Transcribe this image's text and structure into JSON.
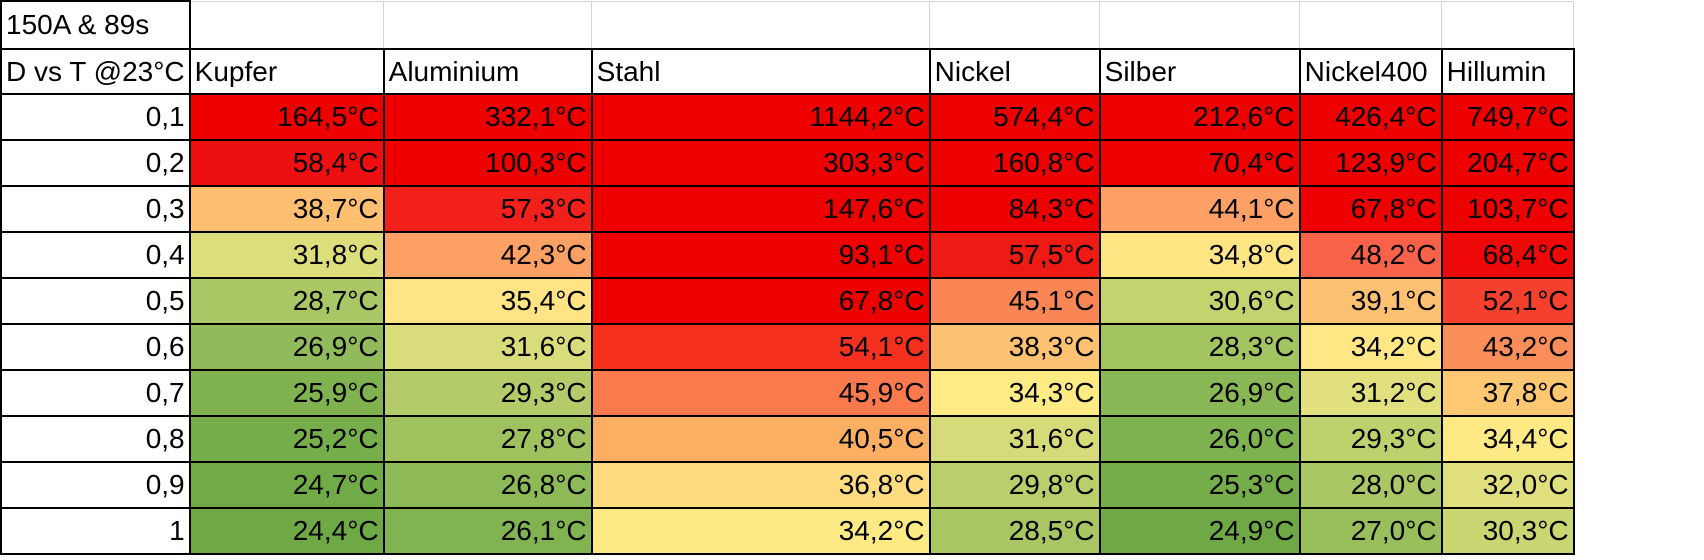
{
  "title": "150A & 89s",
  "corner_label": "D vs T @23°C",
  "columns": [
    "Kupfer",
    "Aluminium",
    "Stahl",
    "Nickel",
    "Silber",
    "Nickel400",
    "Hillumin"
  ],
  "rows": [
    {
      "d": "0,1",
      "cells": [
        {
          "t": "164,5°C",
          "c": "#ee0000"
        },
        {
          "t": "332,1°C",
          "c": "#ee0000"
        },
        {
          "t": "1144,2°C",
          "c": "#ee0000"
        },
        {
          "t": "574,4°C",
          "c": "#ee0000"
        },
        {
          "t": "212,6°C",
          "c": "#ee0000"
        },
        {
          "t": "426,4°C",
          "c": "#ee0000"
        },
        {
          "t": "749,7°C",
          "c": "#ee0000"
        }
      ]
    },
    {
      "d": "0,2",
      "cells": [
        {
          "t": "58,4°C",
          "c": "#ee1010"
        },
        {
          "t": "100,3°C",
          "c": "#ee0000"
        },
        {
          "t": "303,3°C",
          "c": "#ee0000"
        },
        {
          "t": "160,8°C",
          "c": "#ee0000"
        },
        {
          "t": "70,4°C",
          "c": "#ee0000"
        },
        {
          "t": "123,9°C",
          "c": "#ee0000"
        },
        {
          "t": "204,7°C",
          "c": "#ee0000"
        }
      ]
    },
    {
      "d": "0,3",
      "cells": [
        {
          "t": "38,7°C",
          "c": "#fec070"
        },
        {
          "t": "57,3°C",
          "c": "#f2201a"
        },
        {
          "t": "147,6°C",
          "c": "#ee0000"
        },
        {
          "t": "84,3°C",
          "c": "#ee0000"
        },
        {
          "t": "44,1°C",
          "c": "#fca066"
        },
        {
          "t": "67,8°C",
          "c": "#ee0000"
        },
        {
          "t": "103,7°C",
          "c": "#ee0000"
        }
      ]
    },
    {
      "d": "0,4",
      "cells": [
        {
          "t": "31,8°C",
          "c": "#dcde7c"
        },
        {
          "t": "42,3°C",
          "c": "#fca064"
        },
        {
          "t": "93,1°C",
          "c": "#ee0000"
        },
        {
          "t": "57,5°C",
          "c": "#ee1a14"
        },
        {
          "t": "34,8°C",
          "c": "#fee584"
        },
        {
          "t": "48,2°C",
          "c": "#f86248"
        },
        {
          "t": "68,4°C",
          "c": "#ee0808"
        }
      ]
    },
    {
      "d": "0,5",
      "cells": [
        {
          "t": "28,7°C",
          "c": "#a9c765"
        },
        {
          "t": "35,4°C",
          "c": "#fee485"
        },
        {
          "t": "67,8°C",
          "c": "#ee0000"
        },
        {
          "t": "45,1°C",
          "c": "#fa8656"
        },
        {
          "t": "30,6°C",
          "c": "#c3d46f"
        },
        {
          "t": "39,1°C",
          "c": "#fec071"
        },
        {
          "t": "52,1°C",
          "c": "#f4402d"
        }
      ]
    },
    {
      "d": "0,6",
      "cells": [
        {
          "t": "26,9°C",
          "c": "#91bb5a"
        },
        {
          "t": "31,6°C",
          "c": "#d8dc7a"
        },
        {
          "t": "54,1°C",
          "c": "#f5301f"
        },
        {
          "t": "38,3°C",
          "c": "#fec272"
        },
        {
          "t": "28,3°C",
          "c": "#a3c461"
        },
        {
          "t": "34,2°C",
          "c": "#fee784"
        },
        {
          "t": "43,2°C",
          "c": "#fa8e5a"
        }
      ]
    },
    {
      "d": "0,7",
      "cells": [
        {
          "t": "25,9°C",
          "c": "#80b350"
        },
        {
          "t": "29,3°C",
          "c": "#b3cb69"
        },
        {
          "t": "45,9°C",
          "c": "#fa7a4e"
        },
        {
          "t": "34,3°C",
          "c": "#feeb84"
        },
        {
          "t": "26,9°C",
          "c": "#8ab755"
        },
        {
          "t": "31,2°C",
          "c": "#e0e07e"
        },
        {
          "t": "37,8°C",
          "c": "#fec873"
        }
      ]
    },
    {
      "d": "0,8",
      "cells": [
        {
          "t": "25,2°C",
          "c": "#76ae4b"
        },
        {
          "t": "27,8°C",
          "c": "#9fc25f"
        },
        {
          "t": "40,5°C",
          "c": "#fcaf62"
        },
        {
          "t": "31,6°C",
          "c": "#d6db79"
        },
        {
          "t": "26,0°C",
          "c": "#7db24e"
        },
        {
          "t": "29,3°C",
          "c": "#bdd16d"
        },
        {
          "t": "34,4°C",
          "c": "#feea84"
        }
      ]
    },
    {
      "d": "0,9",
      "cells": [
        {
          "t": "24,7°C",
          "c": "#70ab47"
        },
        {
          "t": "26,8°C",
          "c": "#8db957"
        },
        {
          "t": "36,8°C",
          "c": "#fedb7e"
        },
        {
          "t": "29,8°C",
          "c": "#b9cf6b"
        },
        {
          "t": "25,3°C",
          "c": "#74ad49"
        },
        {
          "t": "28,0°C",
          "c": "#a9c764"
        },
        {
          "t": "32,0°C",
          "c": "#dfdf7e"
        }
      ]
    },
    {
      "d": "1",
      "cells": [
        {
          "t": "24,4°C",
          "c": "#6ea946"
        },
        {
          "t": "26,1°C",
          "c": "#82b351"
        },
        {
          "t": "34,2°C",
          "c": "#feea84"
        },
        {
          "t": "28,5°C",
          "c": "#a8c663"
        },
        {
          "t": "24,9°C",
          "c": "#6ea946"
        },
        {
          "t": "27,0°C",
          "c": "#99bf5c"
        },
        {
          "t": "30,3°C",
          "c": "#c9d672"
        }
      ]
    }
  ]
}
